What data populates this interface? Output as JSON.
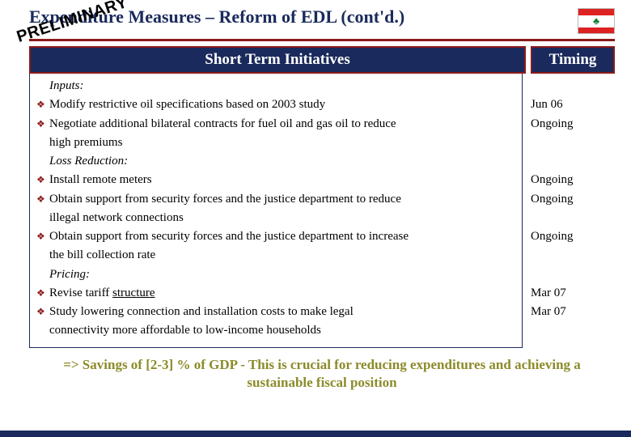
{
  "title": "Expenditure Measures – Reform of EDL (cont'd.)",
  "stamp": "PRELIMINARY",
  "flag": {
    "stripe_color": "#d22",
    "cedar_color": "#0a7a2a",
    "cedar_glyph": "♣"
  },
  "colors": {
    "navy": "#1a2a5c",
    "dark_red": "#8b1a1a",
    "olive": "#8b8b2a",
    "bg": "#ffffff"
  },
  "headers": {
    "main": "Short Term Initiatives",
    "timing": "Timing"
  },
  "rows": [
    {
      "type": "section",
      "text": "Inputs:",
      "timing": ""
    },
    {
      "type": "bullet",
      "text": "Modify restrictive oil specifications based on 2003 study",
      "timing": "Jun 06"
    },
    {
      "type": "bullet",
      "text": "Negotiate additional bilateral contracts for fuel oil and gas oil to reduce",
      "timing": "Ongoing"
    },
    {
      "type": "cont",
      "text": "high premiums",
      "timing": ""
    },
    {
      "type": "section",
      "text": "Loss Reduction:",
      "timing": ""
    },
    {
      "type": "bullet",
      "text": "Install remote meters",
      "timing": "Ongoing"
    },
    {
      "type": "bullet",
      "text": "Obtain support from security forces and the justice department to reduce",
      "timing": "Ongoing"
    },
    {
      "type": "cont",
      "text": "illegal network connections",
      "timing": ""
    },
    {
      "type": "bullet",
      "text": "Obtain support from security forces and the justice department to increase",
      "timing": "Ongoing"
    },
    {
      "type": "cont",
      "text": "the bill collection rate",
      "timing": ""
    },
    {
      "type": "section",
      "text": "Pricing:",
      "timing": ""
    },
    {
      "type": "bullet",
      "html": "Revise tariff <span class=\"underline\">structure</span>",
      "timing": "Mar 07"
    },
    {
      "type": "bullet",
      "text": "Study lowering connection and installation costs to make legal",
      "timing": "Mar 07"
    },
    {
      "type": "cont",
      "text": "connectivity more affordable to low-income households",
      "timing": ""
    }
  ],
  "footer": "=> Savings of [2-3] % of GDP - This is crucial for reducing expenditures and achieving a sustainable fiscal position"
}
